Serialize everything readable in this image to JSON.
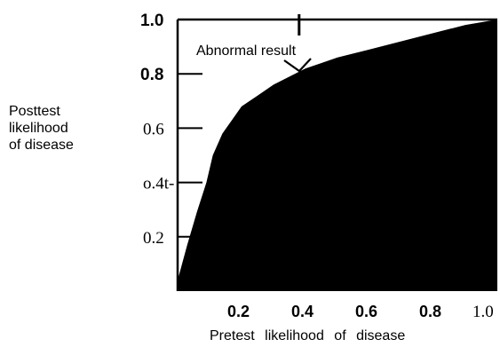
{
  "chart_data": {
    "type": "area",
    "title": "",
    "xlabel": "Pretest likelihood of disease",
    "ylabel_lines": [
      "Posttest",
      "likelihood",
      "of disease"
    ],
    "xlim": [
      0.0,
      1.0
    ],
    "ylim": [
      0.0,
      1.0
    ],
    "x_tick_labels": [
      {
        "value": 0.2,
        "label": "0.2"
      },
      {
        "value": 0.4,
        "label": "0.4"
      },
      {
        "value": 0.6,
        "label": "0.6"
      },
      {
        "value": 0.8,
        "label": "0.8"
      },
      {
        "value": 1.0,
        "label": "1.0"
      }
    ],
    "y_tick_labels": [
      {
        "value": 1.0,
        "label": "1.0"
      },
      {
        "value": 0.8,
        "label": "0.8"
      },
      {
        "value": 0.6,
        "label": "0.6"
      },
      {
        "value": 0.4,
        "label": "o.4t-"
      },
      {
        "value": 0.2,
        "label": "0.2"
      }
    ],
    "series": [
      {
        "name": "Abnormal result",
        "fill_color": "#000000",
        "x": [
          0.0,
          0.03,
          0.06,
          0.09,
          0.11,
          0.14,
          0.17,
          0.2,
          0.25,
          0.3,
          0.35,
          0.4,
          0.45,
          0.5,
          0.6,
          0.7,
          0.8,
          0.9,
          1.0
        ],
        "y": [
          0.04,
          0.17,
          0.29,
          0.4,
          0.5,
          0.58,
          0.63,
          0.68,
          0.72,
          0.76,
          0.79,
          0.82,
          0.84,
          0.86,
          0.89,
          0.92,
          0.95,
          0.98,
          1.0
        ]
      }
    ],
    "annotations": [
      {
        "text": "Abnormal result",
        "x": 0.42,
        "y": 0.81
      }
    ],
    "grid": false,
    "legend": "none"
  }
}
